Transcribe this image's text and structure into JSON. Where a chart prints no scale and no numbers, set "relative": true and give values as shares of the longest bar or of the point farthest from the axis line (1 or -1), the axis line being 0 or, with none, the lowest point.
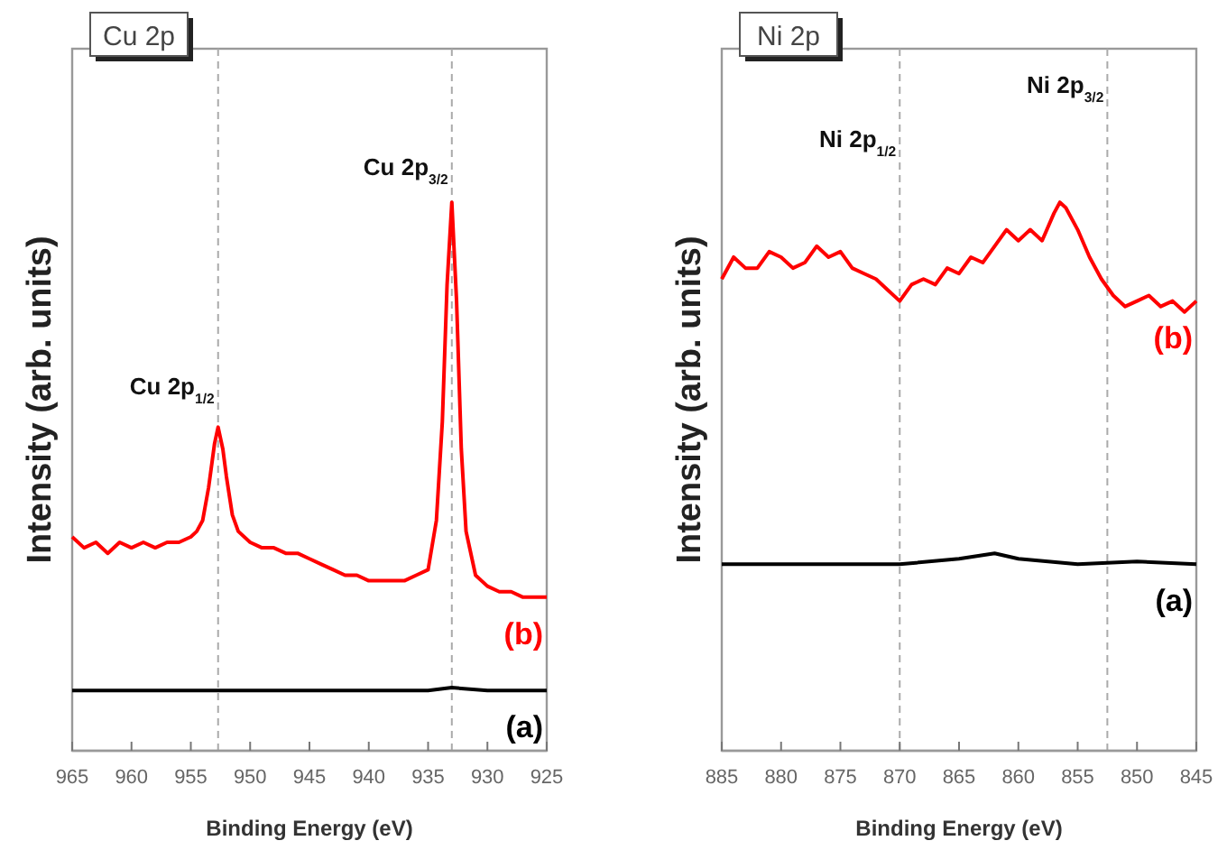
{
  "chart_data": [
    {
      "type": "line",
      "title": "Cu 2p",
      "xlabel": "Binding Energy (eV)",
      "ylabel": "Intensity (arb. units)",
      "relative": true,
      "tick_labels": "x",
      "xlim": [
        965,
        925
      ],
      "xticks": [
        965,
        960,
        955,
        950,
        945,
        940,
        935,
        930,
        925
      ],
      "series": [
        {
          "name": "(b)",
          "color": "#ff0000",
          "x": [
            965,
            964,
            963,
            962,
            961,
            960,
            959,
            958,
            957,
            956,
            955,
            954.5,
            954,
            953.5,
            953,
            952.7,
            952.3,
            952,
            951.5,
            951,
            950,
            949,
            948,
            947,
            946,
            945,
            944,
            943,
            942,
            941,
            940,
            939,
            938,
            937,
            936,
            935,
            934.3,
            933.8,
            933.4,
            933,
            932.6,
            932.2,
            931.8,
            931,
            930,
            929,
            928,
            927,
            926,
            925
          ],
          "values": [
            0.39,
            0.37,
            0.38,
            0.36,
            0.38,
            0.37,
            0.38,
            0.37,
            0.38,
            0.38,
            0.39,
            0.4,
            0.42,
            0.48,
            0.56,
            0.59,
            0.55,
            0.5,
            0.43,
            0.4,
            0.38,
            0.37,
            0.37,
            0.36,
            0.36,
            0.35,
            0.34,
            0.33,
            0.32,
            0.32,
            0.31,
            0.31,
            0.31,
            0.31,
            0.32,
            0.33,
            0.42,
            0.6,
            0.85,
            1,
            0.82,
            0.55,
            0.4,
            0.32,
            0.3,
            0.29,
            0.29,
            0.28,
            0.28,
            0.28
          ]
        },
        {
          "name": "(a)",
          "color": "#000000",
          "x": [
            965,
            960,
            955,
            950,
            945,
            940,
            935,
            933,
            930,
            925
          ],
          "values": [
            0.11,
            0.11,
            0.11,
            0.11,
            0.11,
            0.11,
            0.11,
            0.115,
            0.11,
            0.11
          ]
        }
      ],
      "ref_lines": [
        {
          "axis": "x",
          "value": 952.7,
          "color": "#aaaaaa",
          "line_style": "dashed"
        },
        {
          "axis": "x",
          "value": 933,
          "color": "#aaaaaa",
          "line_style": "dashed"
        }
      ],
      "annotations": [
        {
          "text": "Cu 2p$_{1/2}$",
          "x": 952.7,
          "y": 0.65
        },
        {
          "text": "Cu 2p$_{3/2}$",
          "x": 933,
          "y": 1.05
        }
      ]
    },
    {
      "type": "line",
      "title": "Ni 2p",
      "xlabel": "Binding Energy (eV)",
      "ylabel": "Intensity (arb. units)",
      "relative": true,
      "tick_labels": "x",
      "xlim": [
        885,
        845
      ],
      "xticks": [
        885,
        880,
        875,
        870,
        865,
        860,
        855,
        850,
        845
      ],
      "series": [
        {
          "name": "(b)",
          "color": "#ff0000",
          "x": [
            885,
            884,
            883,
            882,
            881,
            880,
            879,
            878,
            877,
            876,
            875,
            874,
            873,
            872,
            871,
            870,
            869,
            868,
            867,
            866,
            865,
            864,
            863,
            862,
            861,
            860,
            859,
            858,
            857,
            856.5,
            856,
            855,
            854,
            853,
            852,
            851,
            850,
            849,
            848,
            847,
            846,
            845
          ],
          "values": [
            0.86,
            0.9,
            0.88,
            0.88,
            0.91,
            0.9,
            0.88,
            0.89,
            0.92,
            0.9,
            0.91,
            0.88,
            0.87,
            0.86,
            0.84,
            0.82,
            0.85,
            0.86,
            0.85,
            0.88,
            0.87,
            0.9,
            0.89,
            0.92,
            0.95,
            0.93,
            0.95,
            0.93,
            0.98,
            1,
            0.99,
            0.95,
            0.9,
            0.86,
            0.83,
            0.81,
            0.82,
            0.83,
            0.81,
            0.82,
            0.8,
            0.82
          ]
        },
        {
          "name": "(a)",
          "color": "#000000",
          "x": [
            885,
            880,
            875,
            870,
            865,
            862,
            860,
            855,
            850,
            845
          ],
          "values": [
            0.34,
            0.34,
            0.34,
            0.34,
            0.35,
            0.36,
            0.35,
            0.34,
            0.345,
            0.34
          ]
        }
      ],
      "ref_lines": [
        {
          "axis": "x",
          "value": 870,
          "color": "#aaaaaa",
          "line_style": "dashed"
        },
        {
          "axis": "x",
          "value": 852.5,
          "color": "#aaaaaa",
          "line_style": "dashed"
        }
      ],
      "annotations": [
        {
          "text": "Ni 2p$_{1/2}$",
          "x": 870,
          "y": 1.1
        },
        {
          "text": "Ni 2p$_{3/2}$",
          "x": 852.5,
          "y": 1.2
        }
      ]
    }
  ]
}
